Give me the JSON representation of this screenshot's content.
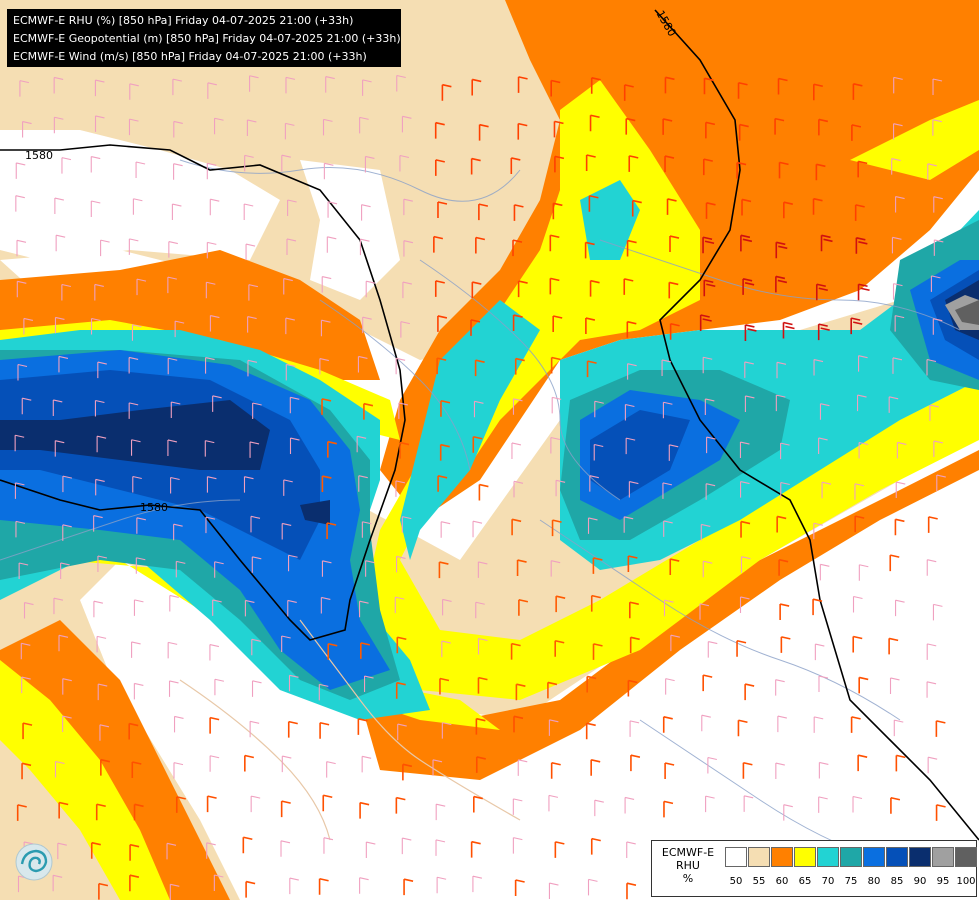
{
  "header": {
    "lines": [
      "ECMWF-E RHU (%) [850 hPa] Friday 04-07-2025 21:00 (+33h)",
      "ECMWF-E Geopotential (m) [850 hPa] Friday 04-07-2025 21:00 (+33h)",
      "ECMWF-E Wind (m/s) [850 hPa] Friday 04-07-2025 21:00 (+33h)"
    ]
  },
  "contours": {
    "label_1": "1580",
    "label_2": "1580",
    "label_3": "1580"
  },
  "legend": {
    "title_line1": "ECMWF-E",
    "title_line2": "RHU",
    "title_line3": "%",
    "ticks": [
      "50",
      "55",
      "60",
      "65",
      "70",
      "75",
      "80",
      "85",
      "90",
      "95",
      "100"
    ],
    "colors": [
      "#ffffff",
      "#f5deb3",
      "#ff8000",
      "#ffff00",
      "#22d3d3",
      "#1fa7a7",
      "#0a6fe0",
      "#0550b8",
      "#0a2e6e",
      "#a0a0a0",
      "#606060"
    ]
  },
  "logo": {
    "icon": "ecmwf-logo-icon"
  }
}
